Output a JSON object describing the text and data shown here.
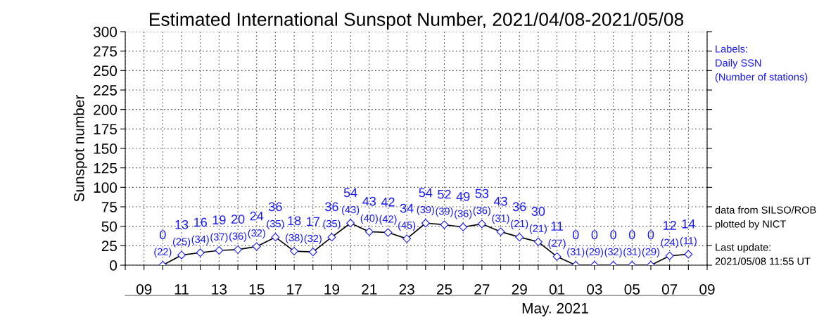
{
  "chart_data": {
    "type": "line",
    "title": "Estimated International Sunspot Number, 2021/04/08-2021/05/08",
    "ylabel": "Sunspot number",
    "x": [
      "2021-04-10",
      "2021-04-11",
      "2021-04-12",
      "2021-04-13",
      "2021-04-14",
      "2021-04-15",
      "2021-04-16",
      "2021-04-17",
      "2021-04-18",
      "2021-04-19",
      "2021-04-20",
      "2021-04-21",
      "2021-04-22",
      "2021-04-23",
      "2021-04-24",
      "2021-04-25",
      "2021-04-26",
      "2021-04-27",
      "2021-04-28",
      "2021-04-29",
      "2021-04-30",
      "2021-05-01",
      "2021-05-02",
      "2021-05-03",
      "2021-05-04",
      "2021-05-05",
      "2021-05-06",
      "2021-05-07",
      "2021-05-08"
    ],
    "series": [
      {
        "color": "#000000",
        "values": [
          0,
          13,
          16,
          19,
          20,
          24,
          36,
          18,
          17,
          36,
          54,
          43,
          42,
          34,
          54,
          52,
          49,
          53,
          43,
          36,
          30,
          11,
          0,
          0,
          0,
          0,
          0,
          12,
          14
        ]
      }
    ],
    "marker": "diamond",
    "line_style": "solid",
    "data_labels": true,
    "grid": true,
    "legend": false,
    "xlim": [
      "2021-04-08",
      "2021-05-09"
    ],
    "xticks": [
      {
        "value": "2021-04-08",
        "label": null
      },
      {
        "value": "2021-04-09",
        "label": "09"
      },
      {
        "value": "2021-04-10",
        "label": null
      },
      {
        "value": "2021-04-11",
        "label": "11"
      },
      {
        "value": "2021-04-12",
        "label": null
      },
      {
        "value": "2021-04-13",
        "label": "13"
      },
      {
        "value": "2021-04-14",
        "label": null
      },
      {
        "value": "2021-04-15",
        "label": "15"
      },
      {
        "value": "2021-04-16",
        "label": null
      },
      {
        "value": "2021-04-17",
        "label": "17"
      },
      {
        "value": "2021-04-18",
        "label": null
      },
      {
        "value": "2021-04-19",
        "label": "19"
      },
      {
        "value": "2021-04-20",
        "label": null
      },
      {
        "value": "2021-04-21",
        "label": "21"
      },
      {
        "value": "2021-04-22",
        "label": null
      },
      {
        "value": "2021-04-23",
        "label": "23"
      },
      {
        "value": "2021-04-24",
        "label": null
      },
      {
        "value": "2021-04-25",
        "label": "25"
      },
      {
        "value": "2021-04-26",
        "label": null
      },
      {
        "value": "2021-04-27",
        "label": "27"
      },
      {
        "value": "2021-04-28",
        "label": null
      },
      {
        "value": "2021-04-29",
        "label": "29"
      },
      {
        "value": "2021-04-30",
        "label": null
      },
      {
        "value": "2021-05-01",
        "label": "01"
      },
      {
        "value": "2021-05-02",
        "label": null
      },
      {
        "value": "2021-05-03",
        "label": "03"
      },
      {
        "value": "2021-05-04",
        "label": null
      },
      {
        "value": "2021-05-05",
        "label": "05"
      },
      {
        "value": "2021-05-06",
        "label": null
      },
      {
        "value": "2021-05-07",
        "label": "07"
      },
      {
        "value": "2021-05-08",
        "label": null
      },
      {
        "value": "2021-05-09",
        "label": "09"
      }
    ],
    "ylim": [
      0,
      300
    ],
    "yticks": [
      0,
      25,
      50,
      75,
      100,
      125,
      150,
      175,
      200,
      225,
      250,
      275,
      300
    ],
    "annotations": [
      "Labels:\nDaily SSN\n(Number of stations)",
      "data from SILSO/ROB\nplotted by NICT",
      "Last update:\n2021/05/08 11:55 UT",
      "May. 2021",
      {
        "text": "(22)",
        "x": "2021-04-10",
        "y": 0
      },
      {
        "text": "(25)",
        "x": "2021-04-11",
        "y": 13
      },
      {
        "text": "(34)",
        "x": "2021-04-12",
        "y": 16
      },
      {
        "text": "(37)",
        "x": "2021-04-13",
        "y": 19
      },
      {
        "text": "(36)",
        "x": "2021-04-14",
        "y": 20
      },
      {
        "text": "(32)",
        "x": "2021-04-15",
        "y": 24
      },
      {
        "text": "(35)",
        "x": "2021-04-16",
        "y": 36
      },
      {
        "text": "(38)",
        "x": "2021-04-17",
        "y": 18
      },
      {
        "text": "(32)",
        "x": "2021-04-18",
        "y": 17
      },
      {
        "text": "(35)",
        "x": "2021-04-19",
        "y": 36
      },
      {
        "text": "(43)",
        "x": "2021-04-20",
        "y": 54
      },
      {
        "text": "(40)",
        "x": "2021-04-21",
        "y": 43
      },
      {
        "text": "(42)",
        "x": "2021-04-22",
        "y": 42
      },
      {
        "text": "(45)",
        "x": "2021-04-23",
        "y": 34
      },
      {
        "text": "(39)",
        "x": "2021-04-24",
        "y": 54
      },
      {
        "text": "(39)",
        "x": "2021-04-25",
        "y": 52
      },
      {
        "text": "(36)",
        "x": "2021-04-26",
        "y": 49
      },
      {
        "text": "(36)",
        "x": "2021-04-27",
        "y": 53
      },
      {
        "text": "(31)",
        "x": "2021-04-28",
        "y": 43
      },
      {
        "text": "(21)",
        "x": "2021-04-29",
        "y": 36
      },
      {
        "text": "(21)",
        "x": "2021-04-30",
        "y": 30
      },
      {
        "text": "(27)",
        "x": "2021-05-01",
        "y": 11
      },
      {
        "text": "(31)",
        "x": "2021-05-02",
        "y": 0
      },
      {
        "text": "(29)",
        "x": "2021-05-03",
        "y": 0
      },
      {
        "text": "(32)",
        "x": "2021-05-04",
        "y": 0
      },
      {
        "text": "(31)",
        "x": "2021-05-05",
        "y": 0
      },
      {
        "text": "(29)",
        "x": "2021-05-06",
        "y": 0
      },
      {
        "text": "(24)",
        "x": "2021-05-07",
        "y": 12
      },
      {
        "text": "(11)",
        "x": "2021-05-08",
        "y": 14
      }
    ]
  }
}
